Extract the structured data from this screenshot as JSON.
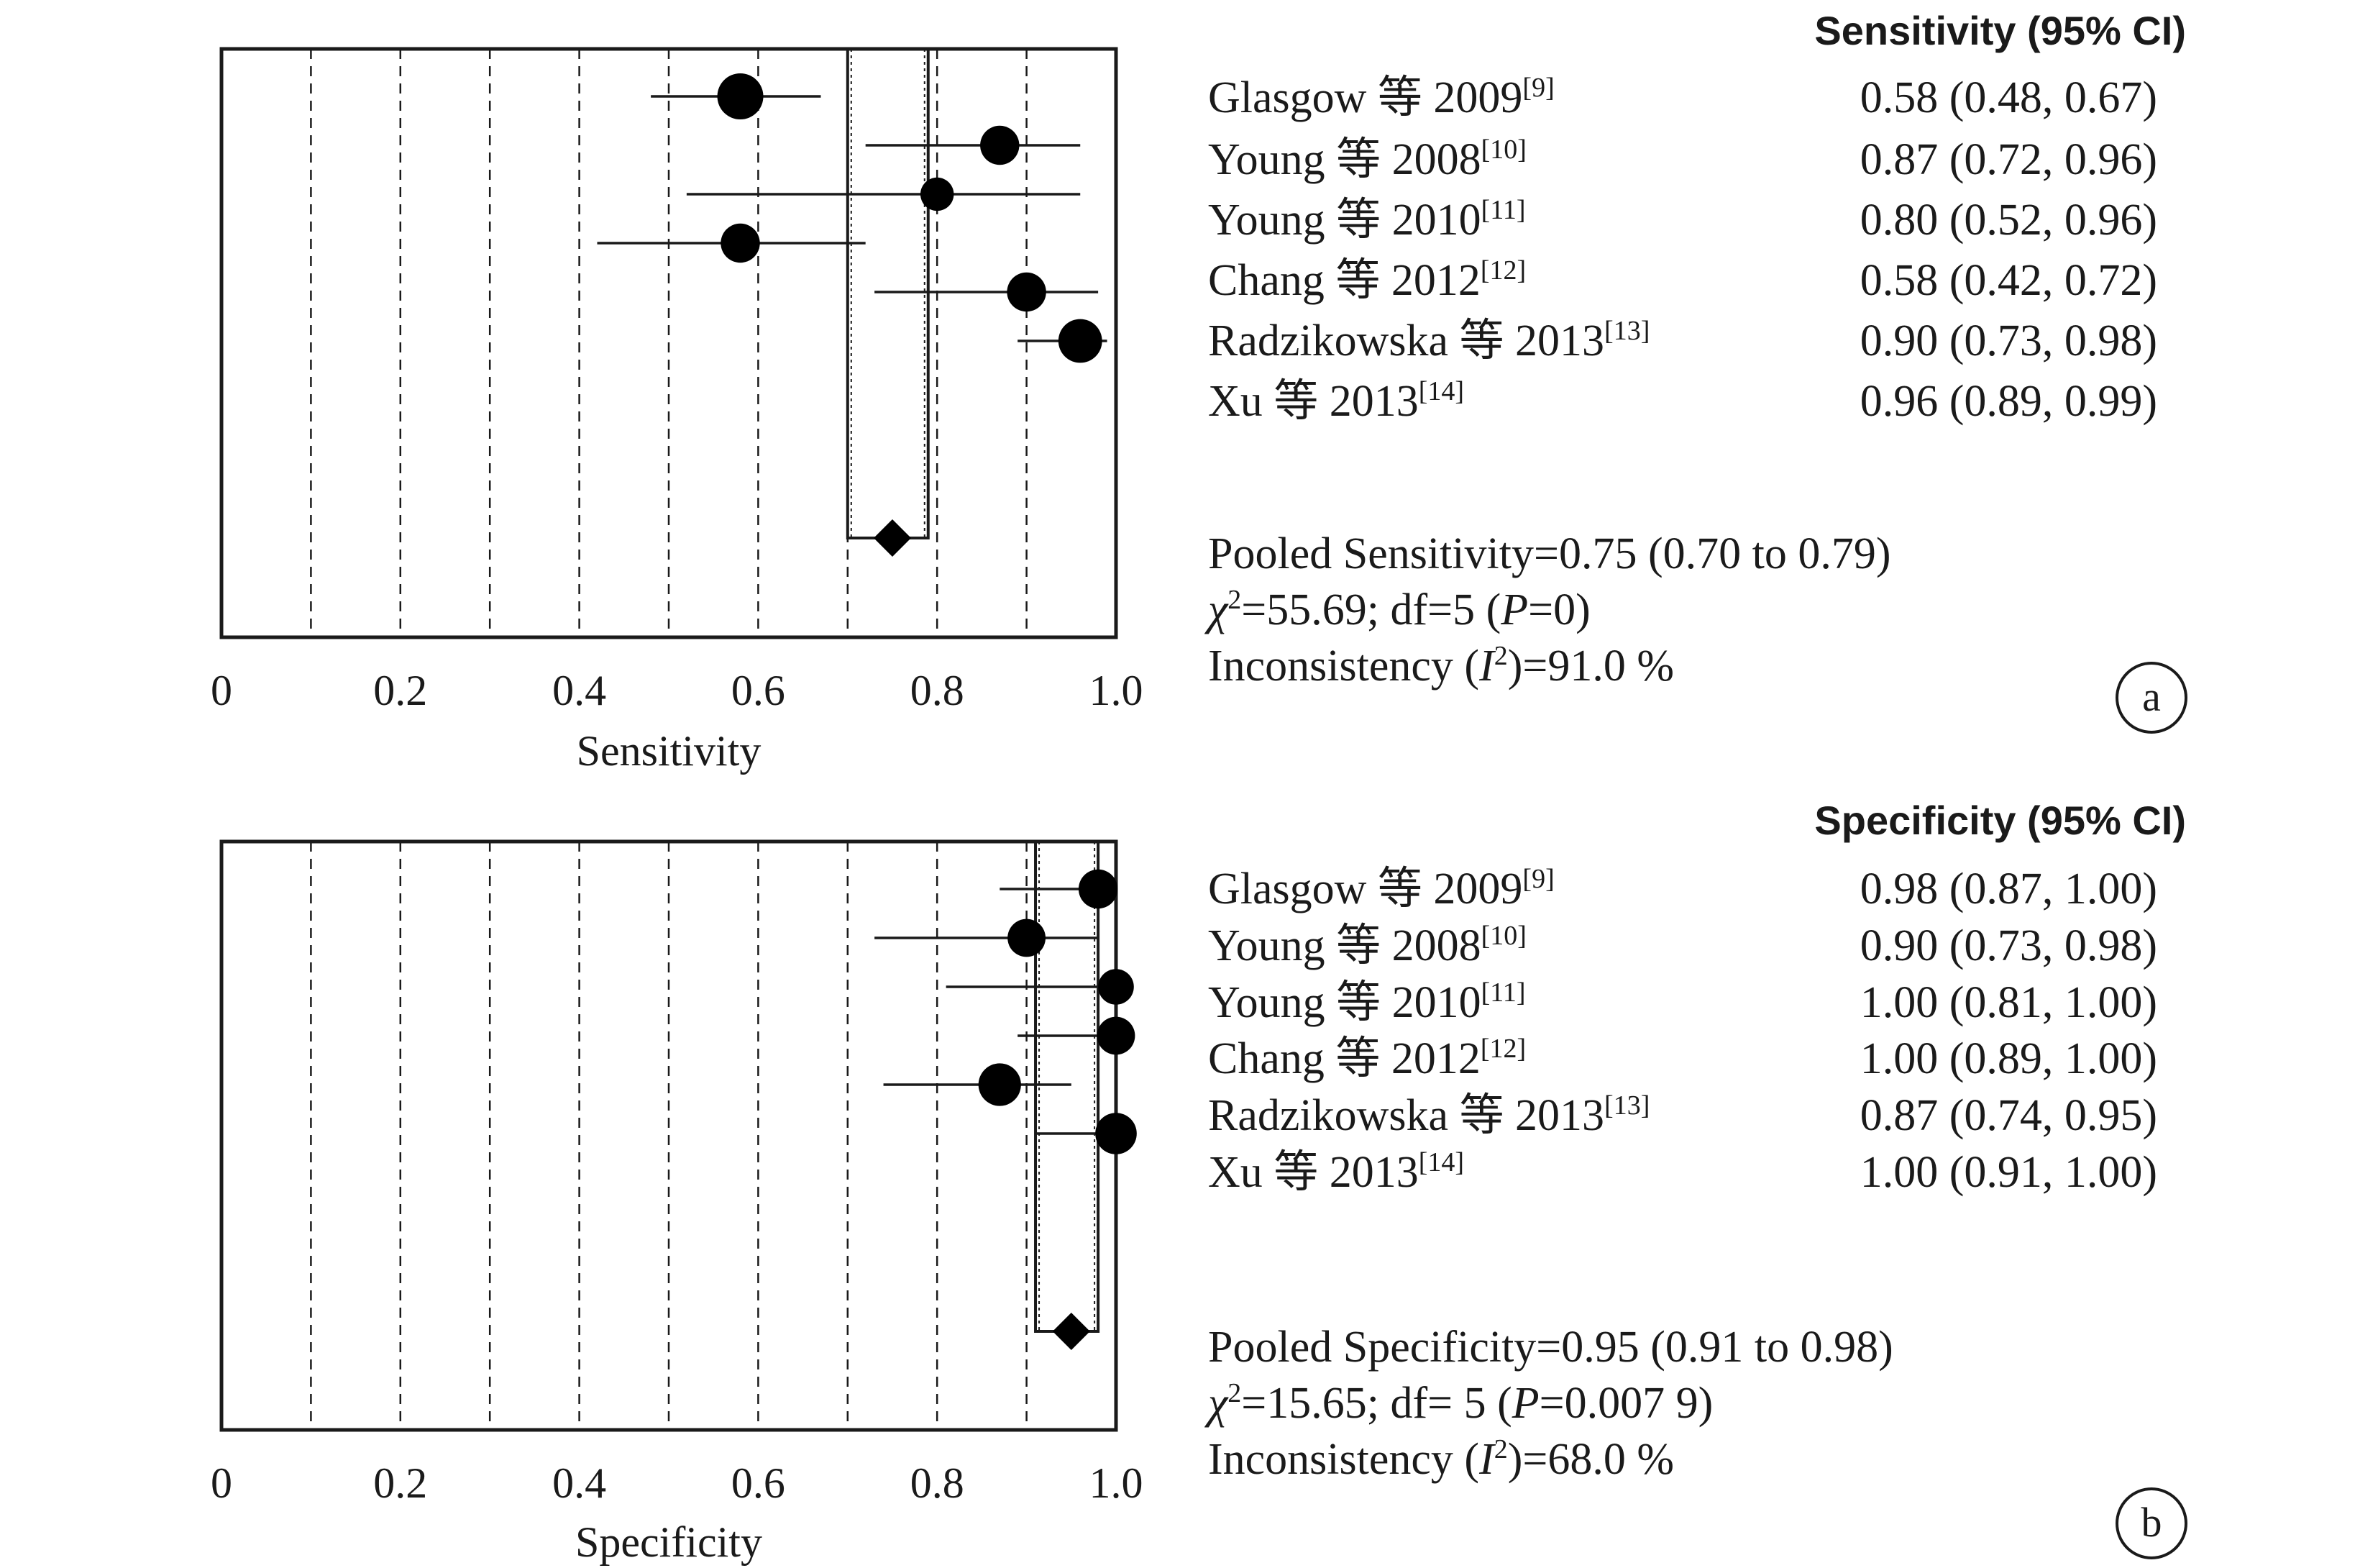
{
  "panels": [
    {
      "id": "a",
      "header": "Sensitivity (95% CI)",
      "xlabel": "Sensitivity",
      "ticks": [
        "0",
        "0.2",
        "0.4",
        "0.6",
        "0.8",
        "1.0"
      ],
      "rows": [
        {
          "study": "Glasgow 等 2009",
          "ref": "[9]",
          "estimate": "0.58 (0.48, 0.67)"
        },
        {
          "study": "Young 等 2008",
          "ref": "[10]",
          "estimate": "0.87 (0.72, 0.96)"
        },
        {
          "study": "Young 等 2010",
          "ref": "[11]",
          "estimate": "0.80 (0.52, 0.96)"
        },
        {
          "study": "Chang 等 2012",
          "ref": "[12]",
          "estimate": "0.58 (0.42, 0.72)"
        },
        {
          "study": "Radzikowska 等 2013",
          "ref": "[13]",
          "estimate": "0.90 (0.73, 0.98)"
        },
        {
          "study": "Xu 等 2013",
          "ref": "[14]",
          "estimate": "0.96 (0.89, 0.99)"
        }
      ],
      "pooled_text": "Pooled Sensitivity=0.75 (0.70 to 0.79)",
      "chi_lead": "χ",
      "chi_sup": "2",
      "chi_pre": "=55.69; df=5 (",
      "chi_p": "P",
      "chi_post": "=0)",
      "incon_pre": "Inconsistency (",
      "incon_i": "I",
      "incon_sup": "2",
      "incon_post": ")=91.0 %",
      "letter": "a"
    },
    {
      "id": "b",
      "header": "Specificity (95% CI)",
      "xlabel": "Specificity",
      "ticks": [
        "0",
        "0.2",
        "0.4",
        "0.6",
        "0.8",
        "1.0"
      ],
      "rows": [
        {
          "study": "Glasgow 等 2009",
          "ref": "[9]",
          "estimate": "0.98 (0.87, 1.00)"
        },
        {
          "study": "Young 等 2008",
          "ref": "[10]",
          "estimate": "0.90 (0.73, 0.98)"
        },
        {
          "study": "Young 等 2010",
          "ref": "[11]",
          "estimate": "1.00 (0.81, 1.00)"
        },
        {
          "study": "Chang 等 2012",
          "ref": "[12]",
          "estimate": "1.00 (0.89, 1.00)"
        },
        {
          "study": "Radzikowska 等 2013",
          "ref": "[13]",
          "estimate": "0.87 (0.74, 0.95)"
        },
        {
          "study": "Xu 等 2013",
          "ref": "[14]",
          "estimate": "1.00 (0.91, 1.00)"
        }
      ],
      "pooled_text": "Pooled Specificity=0.95 (0.91 to 0.98)",
      "chi_lead": "χ",
      "chi_sup": "2",
      "chi_pre": "=15.65; df= 5 (",
      "chi_p": "P",
      "chi_post": "=0.007 9)",
      "incon_pre": "Inconsistency (",
      "incon_i": "I",
      "incon_sup": "2",
      "incon_post": ")=68.0 %",
      "letter": "b"
    }
  ],
  "chart_data": [
    {
      "type": "scatter",
      "subtype": "forest-plot",
      "title": "Sensitivity (95% CI)",
      "xlabel": "Sensitivity",
      "xlim": [
        0,
        1.0
      ],
      "grid": "vertical-dashed",
      "studies": [
        "Glasgow 等 2009",
        "Young 等 2008",
        "Young 等 2010",
        "Chang 等 2012",
        "Radzikowska 等 2013",
        "Xu 等 2013"
      ],
      "point": [
        0.58,
        0.87,
        0.8,
        0.58,
        0.9,
        0.96
      ],
      "lower": [
        0.48,
        0.72,
        0.52,
        0.42,
        0.73,
        0.89
      ],
      "upper": [
        0.67,
        0.96,
        0.96,
        0.72,
        0.98,
        0.99
      ],
      "weight": [
        1.0,
        0.7,
        0.45,
        0.7,
        0.7,
        0.9
      ],
      "pooled": {
        "value": 0.75,
        "lower": 0.7,
        "upper": 0.79
      }
    },
    {
      "type": "scatter",
      "subtype": "forest-plot",
      "title": "Specificity (95% CI)",
      "xlabel": "Specificity",
      "xlim": [
        0,
        1.0
      ],
      "grid": "vertical-dashed",
      "studies": [
        "Glasgow 等 2009",
        "Young 等 2008",
        "Young 等 2010",
        "Chang 等 2012",
        "Radzikowska 等 2013",
        "Xu 等 2013"
      ],
      "point": [
        0.98,
        0.9,
        1.0,
        1.0,
        0.87,
        1.0
      ],
      "lower": [
        0.87,
        0.73,
        0.81,
        0.89,
        0.74,
        0.91
      ],
      "upper": [
        1.0,
        0.98,
        1.0,
        1.0,
        0.95,
        1.0
      ],
      "weight": [
        0.7,
        0.65,
        0.55,
        0.65,
        0.85,
        0.8
      ],
      "pooled": {
        "value": 0.95,
        "lower": 0.91,
        "upper": 0.98
      }
    }
  ]
}
